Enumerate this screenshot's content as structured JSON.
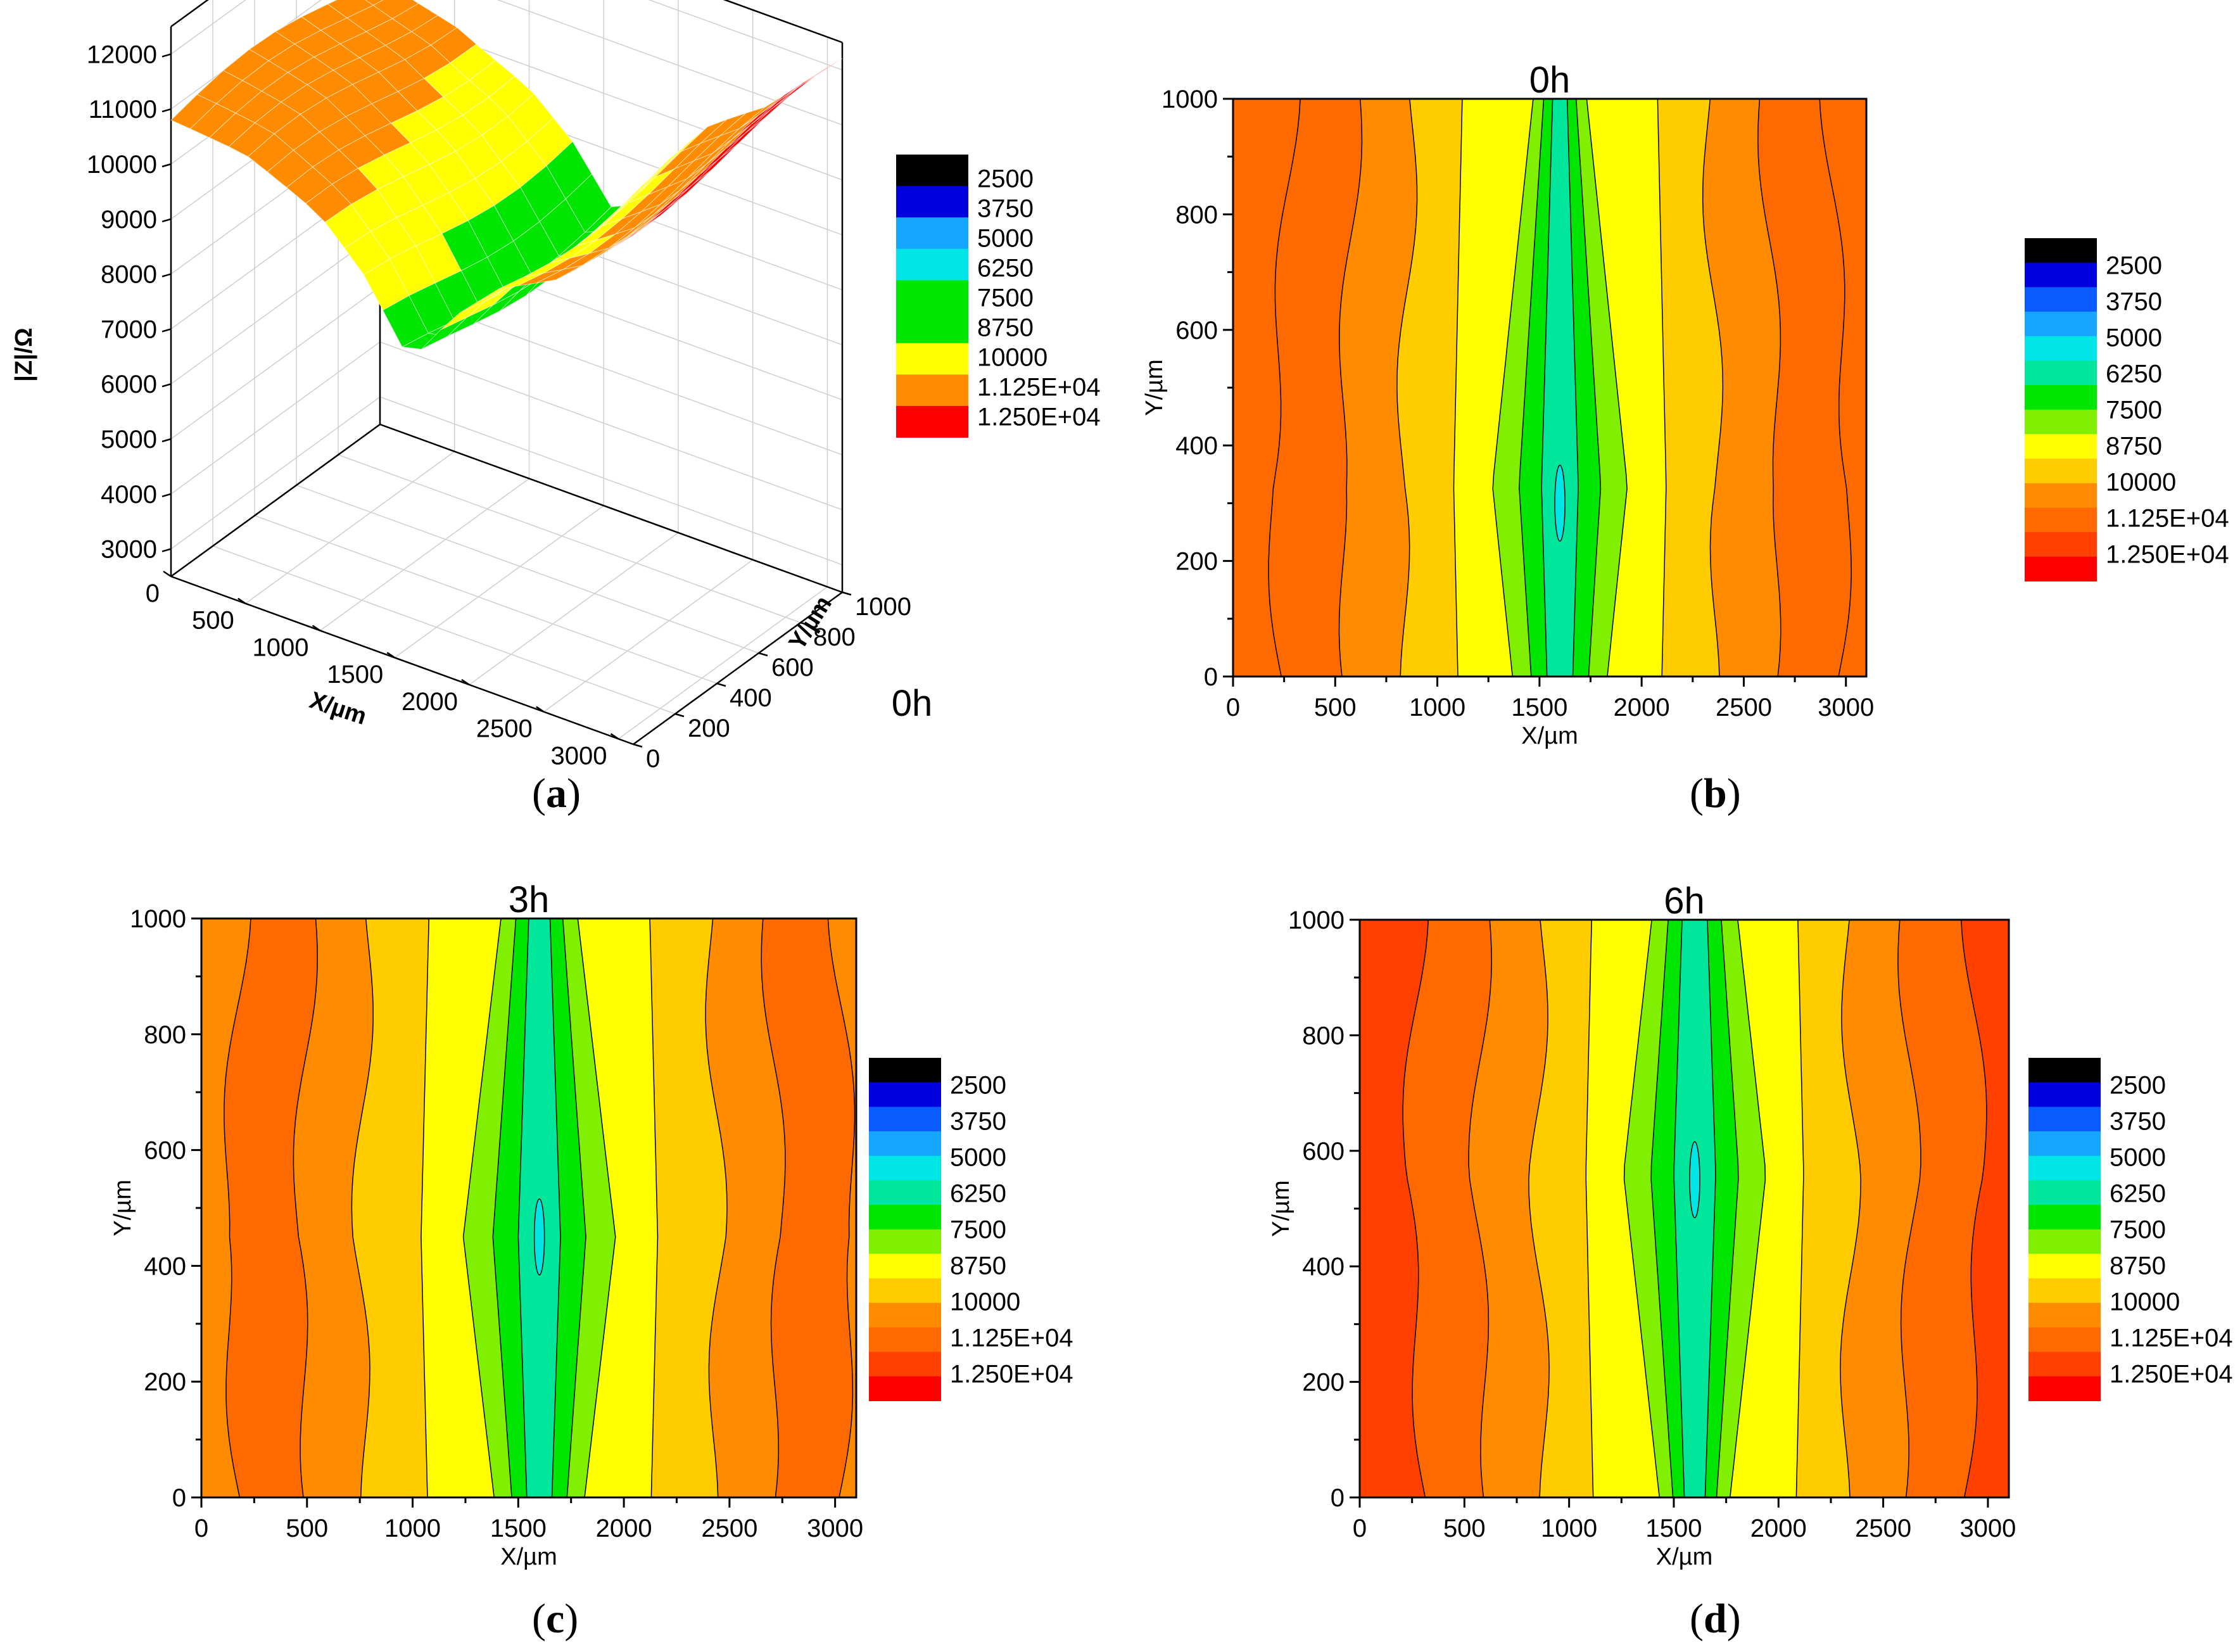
{
  "figure": {
    "panel_letters": [
      "a",
      "b",
      "c",
      "d"
    ],
    "legend_levels": [
      "2500",
      "3750",
      "5000",
      "6250",
      "7500",
      "8750",
      "10000",
      "1.125E+04",
      "1.250E+04"
    ],
    "colors": {
      "black": "#000000",
      "deep_blue": "#0000dd",
      "blue": "#0b5cff",
      "light_blue": "#17a6ff",
      "cyan": "#00e6e6",
      "teal": "#00e69a",
      "green": "#00e600",
      "lime": "#80f000",
      "yellow": "#ffff00",
      "gold": "#ffcc00",
      "orange": "#ff8c00",
      "dark_orange": "#ff6a00",
      "red_orange": "#ff4000",
      "red": "#ff0000"
    }
  },
  "chart_data": [
    {
      "type": "surface",
      "panel": "a",
      "title": "0h",
      "xlabel": "X/µm",
      "ylabel": "Y/µm",
      "zlabel": "|Z|/Ω",
      "x_ticks": [
        "0",
        "500",
        "1000",
        "1500",
        "2000",
        "2500",
        "3000"
      ],
      "y_ticks": [
        "0",
        "200",
        "400",
        "600",
        "800",
        "1000"
      ],
      "z_ticks": [
        "3000",
        "4000",
        "5000",
        "6000",
        "7000",
        "8000",
        "9000",
        "10000",
        "11000",
        "12000"
      ],
      "x_range": [
        0,
        3100
      ],
      "y_range": [
        0,
        1000
      ],
      "z_range": [
        2500,
        12500
      ],
      "legend": [
        "2500",
        "3750",
        "5000",
        "6250",
        "7500",
        "8750",
        "10000",
        "1.125E+04",
        "1.250E+04"
      ],
      "profile_x": [
        0,
        500,
        1000,
        1300,
        1600,
        1900,
        2200,
        2600,
        3100
      ],
      "profile_z": [
        10800,
        10500,
        9800,
        9000,
        7800,
        9000,
        9900,
        10600,
        12000
      ]
    },
    {
      "type": "contour",
      "panel": "b",
      "title": "0h",
      "xlabel": "X/µm",
      "ylabel": "Y/µm",
      "x_ticks": [
        "0",
        "500",
        "1000",
        "1500",
        "2000",
        "2500",
        "3000"
      ],
      "y_ticks": [
        "0",
        "200",
        "400",
        "600",
        "800",
        "1000"
      ],
      "x_range": [
        0,
        3100
      ],
      "y_range": [
        0,
        1000
      ],
      "legend": [
        "2500",
        "3750",
        "5000",
        "6250",
        "7500",
        "8750",
        "10000",
        "1.125E+04",
        "1.250E+04"
      ],
      "trough_center_x": 1600,
      "min_value": 6800,
      "min_location_y": 300
    },
    {
      "type": "contour",
      "panel": "c",
      "title": "3h",
      "xlabel": "X/µm",
      "ylabel": "Y/µm",
      "x_ticks": [
        "0",
        "500",
        "1000",
        "1500",
        "2000",
        "2500",
        "3000"
      ],
      "y_ticks": [
        "0",
        "200",
        "400",
        "600",
        "800",
        "1000"
      ],
      "x_range": [
        0,
        3100
      ],
      "y_range": [
        0,
        1000
      ],
      "legend": [
        "2500",
        "3750",
        "5000",
        "6250",
        "7500",
        "8750",
        "10000",
        "1.125E+04",
        "1.250E+04"
      ],
      "trough_center_x": 1600,
      "min_value": 6900,
      "min_location_y": 450
    },
    {
      "type": "contour",
      "panel": "d",
      "title": "6h",
      "xlabel": "X/µm",
      "ylabel": "Y/µm",
      "x_ticks": [
        "0",
        "500",
        "1000",
        "1500",
        "2000",
        "2500",
        "3000"
      ],
      "y_ticks": [
        "0",
        "200",
        "400",
        "600",
        "800",
        "1000"
      ],
      "x_range": [
        0,
        3100
      ],
      "y_range": [
        0,
        1000
      ],
      "legend": [
        "2500",
        "3750",
        "5000",
        "6250",
        "7500",
        "8750",
        "10000",
        "1.125E+04",
        "1.250E+04"
      ],
      "trough_center_x": 1600,
      "min_value": 7300,
      "min_location_y": 550
    }
  ]
}
